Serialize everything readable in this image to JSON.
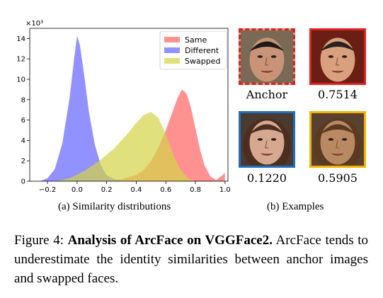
{
  "chart_data": {
    "type": "area",
    "title": "",
    "xlabel": "",
    "ylabel": "",
    "y_multiplier_label": "×10³",
    "xlim": [
      -0.32,
      1.02
    ],
    "ylim": [
      0,
      15
    ],
    "xticks": [
      -0.2,
      0.0,
      0.2,
      0.4,
      0.6,
      0.8,
      1.0
    ],
    "xtick_labels": [
      "−0.2",
      "0.0",
      "0.2",
      "0.4",
      "0.6",
      "0.8",
      "1.0"
    ],
    "yticks": [
      0,
      2,
      4,
      6,
      8,
      10,
      12,
      14
    ],
    "ytick_labels": [
      "0",
      "2",
      "4",
      "6",
      "8",
      "10",
      "12",
      "14"
    ],
    "grid": false,
    "legend_position": "top-right",
    "series": [
      {
        "name": "Same",
        "color": "#ff6666",
        "x": [
          0.1,
          0.2,
          0.3,
          0.4,
          0.45,
          0.5,
          0.55,
          0.6,
          0.65,
          0.68,
          0.71,
          0.74,
          0.77,
          0.8,
          0.83,
          0.86,
          0.9,
          0.94,
          1.0
        ],
        "y": [
          0.0,
          0.05,
          0.2,
          0.6,
          1.1,
          2.0,
          3.3,
          5.0,
          7.0,
          8.2,
          9.0,
          8.6,
          7.2,
          5.2,
          3.2,
          1.6,
          0.5,
          0.1,
          0.8
        ]
      },
      {
        "name": "Different",
        "color": "#6666ff",
        "x": [
          -0.25,
          -0.2,
          -0.15,
          -0.1,
          -0.05,
          -0.02,
          0.0,
          0.02,
          0.05,
          0.08,
          0.12,
          0.16,
          0.2,
          0.25,
          0.3,
          0.35
        ],
        "y": [
          0.0,
          0.3,
          1.2,
          3.7,
          8.2,
          12.0,
          14.3,
          13.3,
          10.2,
          6.8,
          3.6,
          1.6,
          0.6,
          0.2,
          0.05,
          0.0
        ]
      },
      {
        "name": "Swapped",
        "color": "#d4d44a",
        "x": [
          -0.15,
          -0.05,
          0.05,
          0.1,
          0.15,
          0.2,
          0.25,
          0.3,
          0.35,
          0.4,
          0.45,
          0.5,
          0.55,
          0.6,
          0.65,
          0.7,
          0.75,
          0.8
        ],
        "y": [
          0.0,
          0.3,
          1.0,
          1.5,
          2.0,
          2.6,
          3.2,
          4.0,
          4.8,
          5.7,
          6.5,
          6.8,
          6.2,
          4.6,
          2.6,
          1.1,
          0.3,
          0.0
        ]
      }
    ]
  },
  "subcaption_a": "(a) Similarity distributions",
  "subcaption_b": "(b) Examples",
  "examples": [
    {
      "label": "Anchor",
      "border_color": "#e02020",
      "border_style": "dashed"
    },
    {
      "label": "0.7514",
      "border_color": "#e02020",
      "border_style": "solid"
    },
    {
      "label": "0.1220",
      "border_color": "#1f6fbf",
      "border_style": "solid"
    },
    {
      "label": "0.5905",
      "border_color": "#f0b400",
      "border_style": "solid"
    }
  ],
  "caption": {
    "prefix": "Figure 4: ",
    "bold": "Analysis of ArcFace on VGGFace2.",
    "rest": " ArcFace tends to underestimate the identity similarities between anchor images and swapped faces."
  }
}
